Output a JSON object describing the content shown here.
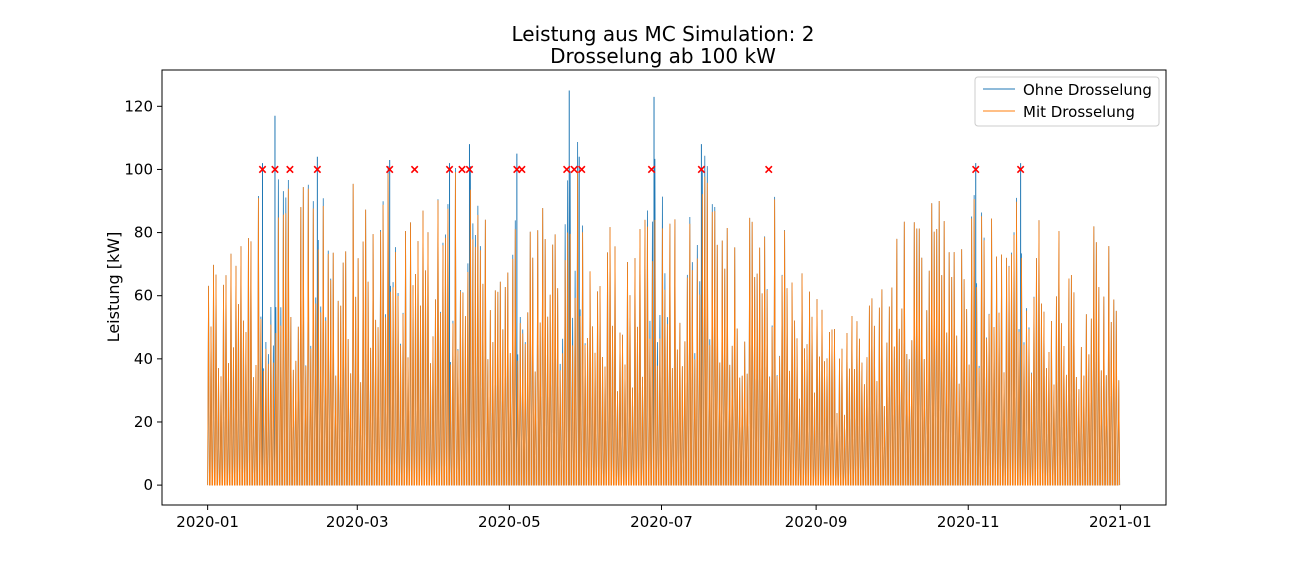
{
  "chart_data": {
    "type": "line",
    "title": "Leistung aus MC Simulation: 2",
    "subtitle": "Drosselung ab 100 kW",
    "xlabel": "",
    "ylabel": "Leistung [kW]",
    "x_range": [
      "2020-01-01",
      "2021-01-01"
    ],
    "ylim": [
      -6.3,
      131.5
    ],
    "y_ticks": [
      0,
      20,
      40,
      60,
      80,
      100,
      120
    ],
    "x_ticks": [
      {
        "date": "2020-01-01",
        "label": "2020-01"
      },
      {
        "date": "2020-03-01",
        "label": "2020-03"
      },
      {
        "date": "2020-05-01",
        "label": "2020-05"
      },
      {
        "date": "2020-07-01",
        "label": "2020-07"
      },
      {
        "date": "2020-09-01",
        "label": "2020-09"
      },
      {
        "date": "2020-11-01",
        "label": "2020-11"
      },
      {
        "date": "2021-01-01",
        "label": "2021-01"
      }
    ],
    "grid": false,
    "legend_position": "top-right",
    "colors": {
      "ohne": "#1f77b4",
      "mit": "#ff7f0e",
      "marker": "#ff0000"
    },
    "series": [
      {
        "name": "Ohne Drosselung",
        "description": "daily peak power without curtailment",
        "x": [
          "2020-01-01",
          "2020-01-05",
          "2020-01-10",
          "2020-01-15",
          "2020-01-20",
          "2020-01-23",
          "2020-01-28",
          "2020-02-03",
          "2020-02-08",
          "2020-02-14",
          "2020-02-20",
          "2020-02-25",
          "2020-03-02",
          "2020-03-09",
          "2020-03-14",
          "2020-03-20",
          "2020-03-26",
          "2020-04-01",
          "2020-04-07",
          "2020-04-13",
          "2020-04-15",
          "2020-04-20",
          "2020-04-26",
          "2020-05-01",
          "2020-05-04",
          "2020-05-08",
          "2020-05-14",
          "2020-05-20",
          "2020-05-25",
          "2020-05-29",
          "2020-06-01",
          "2020-06-07",
          "2020-06-13",
          "2020-06-19",
          "2020-06-24",
          "2020-06-28",
          "2020-07-04",
          "2020-07-10",
          "2020-07-17",
          "2020-07-23",
          "2020-07-29",
          "2020-08-04",
          "2020-08-10",
          "2020-08-14",
          "2020-08-20",
          "2020-08-26",
          "2020-09-01",
          "2020-09-07",
          "2020-09-13",
          "2020-09-19",
          "2020-09-25",
          "2020-10-01",
          "2020-10-07",
          "2020-10-13",
          "2020-10-19",
          "2020-10-25",
          "2020-11-01",
          "2020-11-04",
          "2020-11-10",
          "2020-11-16",
          "2020-11-22",
          "2020-11-28",
          "2020-12-04",
          "2020-12-10",
          "2020-12-16",
          "2020-12-22",
          "2020-12-28",
          "2020-12-31"
        ],
        "values": [
          72,
          95,
          80,
          92,
          88,
          102,
          117,
          96,
          100,
          104,
          90,
          100,
          93,
          96,
          103,
          84,
          99,
          98,
          102,
          100,
          108,
          90,
          95,
          88,
          105,
          92,
          90,
          85,
          125,
          104,
          97,
          86,
          82,
          84,
          90,
          123,
          86,
          84,
          108,
          90,
          82,
          87,
          86,
          101,
          80,
          72,
          63,
          55,
          58,
          57,
          62,
          75,
          94,
          85,
          92,
          88,
          92,
          102,
          90,
          88,
          102,
          90,
          84,
          98,
          80,
          85,
          90,
          65
        ],
        "peaks": [
          {
            "date": "2020-01-23",
            "value": 102
          },
          {
            "date": "2020-01-28",
            "value": 117
          },
          {
            "date": "2020-02-14",
            "value": 104
          },
          {
            "date": "2020-03-14",
            "value": 103
          },
          {
            "date": "2020-04-07",
            "value": 102
          },
          {
            "date": "2020-04-15",
            "value": 108
          },
          {
            "date": "2020-05-04",
            "value": 105
          },
          {
            "date": "2020-05-25",
            "value": 125
          },
          {
            "date": "2020-05-29",
            "value": 104
          },
          {
            "date": "2020-06-28",
            "value": 123
          },
          {
            "date": "2020-07-17",
            "value": 108
          },
          {
            "date": "2020-11-04",
            "value": 102
          },
          {
            "date": "2020-11-22",
            "value": 102
          }
        ]
      },
      {
        "name": "Mit Drosselung",
        "description": "daily peak power with curtailment at 100 kW",
        "x": [
          "2020-01-01",
          "2020-01-05",
          "2020-01-10",
          "2020-01-15",
          "2020-01-20",
          "2020-01-23",
          "2020-01-28",
          "2020-02-03",
          "2020-02-08",
          "2020-02-14",
          "2020-02-20",
          "2020-02-25",
          "2020-03-02",
          "2020-03-09",
          "2020-03-14",
          "2020-03-20",
          "2020-03-26",
          "2020-04-01",
          "2020-04-07",
          "2020-04-13",
          "2020-04-15",
          "2020-04-20",
          "2020-04-26",
          "2020-05-01",
          "2020-05-04",
          "2020-05-08",
          "2020-05-14",
          "2020-05-20",
          "2020-05-25",
          "2020-05-29",
          "2020-06-01",
          "2020-06-07",
          "2020-06-13",
          "2020-06-19",
          "2020-06-24",
          "2020-06-28",
          "2020-07-04",
          "2020-07-10",
          "2020-07-17",
          "2020-07-23",
          "2020-07-29",
          "2020-08-04",
          "2020-08-10",
          "2020-08-14",
          "2020-08-20",
          "2020-08-26",
          "2020-09-01",
          "2020-09-07",
          "2020-09-13",
          "2020-09-19",
          "2020-09-25",
          "2020-10-01",
          "2020-10-07",
          "2020-10-13",
          "2020-10-19",
          "2020-10-25",
          "2020-11-01",
          "2020-11-04",
          "2020-11-10",
          "2020-11-16",
          "2020-11-22",
          "2020-11-28",
          "2020-12-04",
          "2020-12-10",
          "2020-12-16",
          "2020-12-22",
          "2020-12-28",
          "2020-12-31"
        ],
        "values": [
          72,
          95,
          80,
          92,
          88,
          100,
          100,
          96,
          100,
          100,
          90,
          100,
          93,
          96,
          100,
          84,
          99,
          98,
          100,
          100,
          100,
          90,
          95,
          88,
          100,
          92,
          90,
          85,
          100,
          100,
          97,
          86,
          82,
          84,
          90,
          100,
          86,
          84,
          100,
          90,
          82,
          87,
          86,
          100,
          80,
          72,
          63,
          55,
          58,
          57,
          62,
          75,
          94,
          85,
          92,
          88,
          92,
          100,
          90,
          88,
          100,
          90,
          84,
          98,
          80,
          85,
          90,
          65
        ]
      }
    ],
    "curtailment_markers": {
      "value": 100,
      "dates": [
        "2020-01-23",
        "2020-01-28",
        "2020-02-03",
        "2020-02-14",
        "2020-03-14",
        "2020-03-24",
        "2020-04-07",
        "2020-04-12",
        "2020-04-15",
        "2020-05-04",
        "2020-05-06",
        "2020-05-24",
        "2020-05-27",
        "2020-05-30",
        "2020-06-27",
        "2020-07-17",
        "2020-08-13",
        "2020-11-04",
        "2020-11-22"
      ]
    }
  }
}
